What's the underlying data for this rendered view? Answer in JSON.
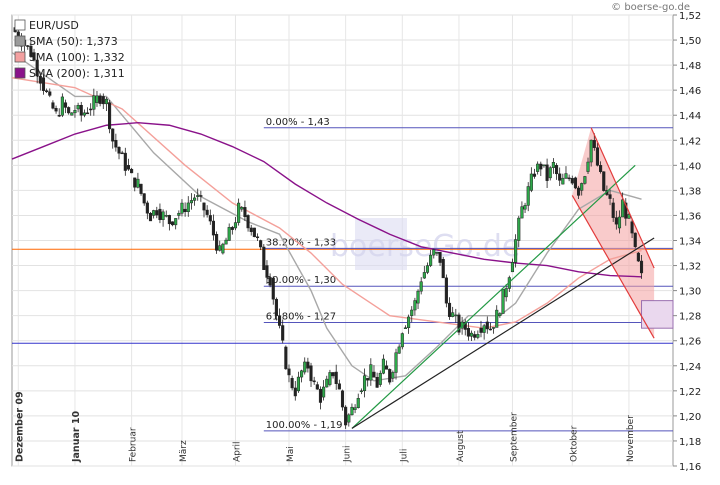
{
  "source": "© boerse-go.de",
  "watermark": "boerseGo.de",
  "legend": [
    {
      "label": "EUR/USD",
      "color": "#ffffff"
    },
    {
      "label": "SMA (50): 1,373",
      "color": "#9a9a9a"
    },
    {
      "label": "SMA (100): 1,332",
      "color": "#f3a0a0"
    },
    {
      "label": "SMA (200): 1,311",
      "color": "#8a128a"
    }
  ],
  "chart_data": {
    "type": "candlestick",
    "ylim": [
      1.16,
      1.52
    ],
    "y_ticks": [
      "1,16",
      "1,18",
      "1,20",
      "1,22",
      "1,24",
      "1,26",
      "1,28",
      "1,30",
      "1,32",
      "1,34",
      "1,36",
      "1,38",
      "1,40",
      "1,42",
      "1,44",
      "1,46",
      "1,48",
      "1,50",
      "1,52"
    ],
    "x_labels": [
      "Dezember 09",
      "Januar 10",
      "Februar",
      "März",
      "April",
      "Mai",
      "Juni",
      "Juli",
      "August",
      "September",
      "Oktober",
      "November"
    ],
    "fib_levels": [
      {
        "label": "0.00% - 1,43",
        "value": 1.43
      },
      {
        "label": "38.20% - 1,33",
        "value": 1.3337
      },
      {
        "label": "50.00% - 1,30",
        "value": 1.3035
      },
      {
        "label": "61.80% - 1,27",
        "value": 1.2745
      },
      {
        "label": "100.00% - 1,19",
        "value": 1.188
      }
    ],
    "horizontal_lines": [
      {
        "value": 1.333,
        "color": "#ff6600"
      },
      {
        "value": 1.258,
        "color": "#3333cc"
      }
    ],
    "series": [
      {
        "name": "EUR/USD",
        "type": "close",
        "points": [
          [
            0,
            1.51
          ],
          [
            3,
            1.5
          ],
          [
            6,
            1.49
          ],
          [
            9,
            1.47
          ],
          [
            12,
            1.45
          ],
          [
            14,
            1.44
          ],
          [
            16,
            1.45
          ],
          [
            18,
            1.44
          ],
          [
            20,
            1.445
          ],
          [
            22,
            1.44
          ],
          [
            24,
            1.445
          ],
          [
            26,
            1.45
          ],
          [
            28,
            1.455
          ],
          [
            30,
            1.45
          ],
          [
            32,
            1.42
          ],
          [
            34,
            1.41
          ],
          [
            36,
            1.4
          ],
          [
            38,
            1.39
          ],
          [
            40,
            1.385
          ],
          [
            42,
            1.37
          ],
          [
            44,
            1.36
          ],
          [
            46,
            1.365
          ],
          [
            48,
            1.36
          ],
          [
            50,
            1.355
          ],
          [
            52,
            1.36
          ],
          [
            54,
            1.365
          ],
          [
            56,
            1.37
          ],
          [
            58,
            1.375
          ],
          [
            60,
            1.37
          ],
          [
            62,
            1.36
          ],
          [
            64,
            1.345
          ],
          [
            66,
            1.33
          ],
          [
            68,
            1.34
          ],
          [
            70,
            1.35
          ],
          [
            72,
            1.365
          ],
          [
            74,
            1.36
          ],
          [
            76,
            1.35
          ],
          [
            78,
            1.34
          ],
          [
            80,
            1.32
          ],
          [
            82,
            1.31
          ],
          [
            84,
            1.28
          ],
          [
            86,
            1.255
          ],
          [
            88,
            1.23
          ],
          [
            90,
            1.22
          ],
          [
            92,
            1.235
          ],
          [
            94,
            1.24
          ],
          [
            96,
            1.225
          ],
          [
            98,
            1.215
          ],
          [
            100,
            1.225
          ],
          [
            102,
            1.235
          ],
          [
            104,
            1.22
          ],
          [
            106,
            1.195
          ],
          [
            108,
            1.205
          ],
          [
            110,
            1.22
          ],
          [
            112,
            1.23
          ],
          [
            114,
            1.235
          ],
          [
            116,
            1.225
          ],
          [
            118,
            1.24
          ],
          [
            120,
            1.23
          ],
          [
            122,
            1.25
          ],
          [
            124,
            1.27
          ],
          [
            126,
            1.28
          ],
          [
            128,
            1.29
          ],
          [
            130,
            1.31
          ],
          [
            132,
            1.32
          ],
          [
            134,
            1.33
          ],
          [
            136,
            1.325
          ],
          [
            138,
            1.29
          ],
          [
            140,
            1.28
          ],
          [
            142,
            1.27
          ],
          [
            144,
            1.27
          ],
          [
            146,
            1.265
          ],
          [
            148,
            1.27
          ],
          [
            150,
            1.275
          ],
          [
            152,
            1.27
          ],
          [
            154,
            1.28
          ],
          [
            156,
            1.295
          ],
          [
            158,
            1.315
          ],
          [
            160,
            1.34
          ],
          [
            162,
            1.365
          ],
          [
            164,
            1.38
          ],
          [
            166,
            1.395
          ],
          [
            168,
            1.4
          ],
          [
            170,
            1.39
          ],
          [
            172,
            1.4
          ],
          [
            174,
            1.385
          ],
          [
            176,
            1.39
          ],
          [
            178,
            1.39
          ],
          [
            180,
            1.38
          ],
          [
            182,
            1.395
          ],
          [
            184,
            1.42
          ],
          [
            186,
            1.4
          ],
          [
            188,
            1.38
          ],
          [
            190,
            1.37
          ],
          [
            192,
            1.35
          ],
          [
            194,
            1.37
          ],
          [
            196,
            1.355
          ],
          [
            198,
            1.33
          ],
          [
            200,
            1.31
          ]
        ]
      },
      {
        "name": "SMA (50)",
        "points": [
          [
            0,
            1.49
          ],
          [
            20,
            1.455
          ],
          [
            30,
            1.455
          ],
          [
            45,
            1.41
          ],
          [
            60,
            1.375
          ],
          [
            75,
            1.355
          ],
          [
            85,
            1.345
          ],
          [
            95,
            1.3
          ],
          [
            100,
            1.27
          ],
          [
            108,
            1.24
          ],
          [
            115,
            1.228
          ],
          [
            125,
            1.232
          ],
          [
            135,
            1.255
          ],
          [
            145,
            1.28
          ],
          [
            155,
            1.28
          ],
          [
            160,
            1.29
          ],
          [
            170,
            1.33
          ],
          [
            180,
            1.365
          ],
          [
            190,
            1.38
          ],
          [
            200,
            1.373
          ]
        ]
      },
      {
        "name": "SMA (100)",
        "points": [
          [
            0,
            1.47
          ],
          [
            20,
            1.462
          ],
          [
            35,
            1.445
          ],
          [
            55,
            1.4
          ],
          [
            70,
            1.37
          ],
          [
            85,
            1.35
          ],
          [
            95,
            1.33
          ],
          [
            105,
            1.305
          ],
          [
            120,
            1.28
          ],
          [
            135,
            1.275
          ],
          [
            150,
            1.27
          ],
          [
            160,
            1.275
          ],
          [
            170,
            1.29
          ],
          [
            180,
            1.31
          ],
          [
            190,
            1.325
          ],
          [
            200,
            1.332
          ]
        ]
      },
      {
        "name": "SMA (200)",
        "points": [
          [
            0,
            1.405
          ],
          [
            10,
            1.415
          ],
          [
            20,
            1.425
          ],
          [
            30,
            1.432
          ],
          [
            40,
            1.434
          ],
          [
            50,
            1.432
          ],
          [
            60,
            1.425
          ],
          [
            70,
            1.415
          ],
          [
            80,
            1.403
          ],
          [
            90,
            1.385
          ],
          [
            100,
            1.37
          ],
          [
            110,
            1.357
          ],
          [
            120,
            1.345
          ],
          [
            130,
            1.335
          ],
          [
            140,
            1.33
          ],
          [
            150,
            1.325
          ],
          [
            160,
            1.322
          ],
          [
            170,
            1.32
          ],
          [
            180,
            1.315
          ],
          [
            190,
            1.312
          ],
          [
            200,
            1.311
          ]
        ]
      }
    ],
    "trendlines": [
      {
        "from": [
          108,
          1.19
        ],
        "to": [
          198,
          1.4
        ],
        "color": "#229944"
      },
      {
        "from": [
          108,
          1.19
        ],
        "to": [
          204,
          1.342
        ],
        "color": "#222222"
      },
      {
        "from": [
          184,
          1.43
        ],
        "to": [
          204,
          1.318
        ],
        "color": "#e23b3b"
      },
      {
        "from": [
          178,
          1.376
        ],
        "to": [
          204,
          1.262
        ],
        "color": "#e23b3b"
      }
    ],
    "highlight_box": {
      "x_from": 200,
      "x_to": 210,
      "y_from": 1.27,
      "y_to": 1.292
    }
  }
}
